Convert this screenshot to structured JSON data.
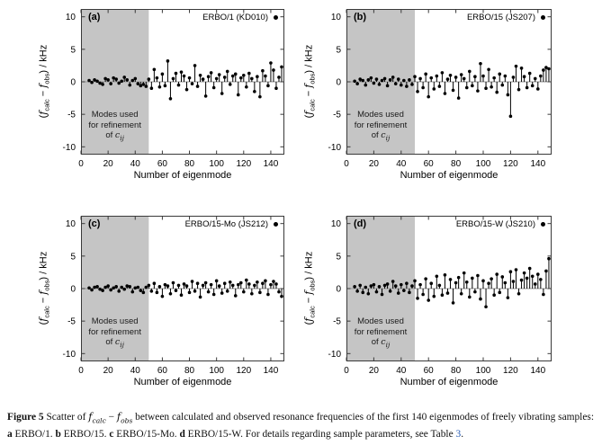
{
  "colors": {
    "shaded_region": "#c5c5c5",
    "zero_line": "#9a9a9a",
    "box_border": "#3a3a3a",
    "marker": "#000000",
    "link": "#2a5db5"
  },
  "axes": {
    "xlabel": "Number of eigenmode",
    "ylabel": {
      "open": "(",
      "f": "f",
      "sub1": "calc",
      "minus": " − ",
      "sub2": "obs",
      "close": ") / kHz"
    },
    "region": {
      "line1": "Modes used",
      "line2": "for refinement",
      "line3_prefix": "of ",
      "c": "c",
      "sub": "ij"
    }
  },
  "chart_data": {
    "type": "scatter",
    "marker": "stem-dot",
    "title": "",
    "xlabel": "Number of eigenmode",
    "ylabel": "(f_calc - f_obs) / kHz",
    "x_range": [
      0,
      150
    ],
    "y_range": [
      -11.2,
      11.2
    ],
    "x_ticks": [
      0,
      20,
      40,
      60,
      80,
      100,
      120,
      140
    ],
    "y_ticks": [
      10,
      5,
      0,
      -5,
      -10
    ],
    "grid": false,
    "legend_position": "top-right-inside",
    "shaded_region": {
      "x0": 0,
      "x1": 50,
      "label": "Modes used for refinement of cij"
    },
    "x": [
      6,
      8,
      10,
      12,
      14,
      16,
      18,
      20,
      22,
      24,
      26,
      28,
      30,
      32,
      34,
      36,
      38,
      40,
      42,
      44,
      46,
      48,
      50,
      52,
      54,
      56,
      58,
      60,
      62,
      64,
      66,
      68,
      70,
      72,
      74,
      76,
      78,
      80,
      82,
      84,
      86,
      88,
      90,
      92,
      94,
      96,
      98,
      100,
      102,
      104,
      106,
      108,
      110,
      112,
      114,
      116,
      118,
      120,
      122,
      124,
      126,
      128,
      130,
      132,
      134,
      136,
      138,
      140,
      142,
      144,
      146,
      148
    ],
    "panels": [
      {
        "panel_label": "(a)",
        "legend": "ERBO/1 (KD010)",
        "y": [
          0.2,
          -0.1,
          0.3,
          0.1,
          -0.2,
          -0.4,
          0.5,
          0.3,
          -0.3,
          0.6,
          0.4,
          -0.2,
          0.1,
          0.7,
          0.3,
          -0.5,
          0.2,
          0.5,
          -0.3,
          -0.6,
          -0.4,
          -0.7,
          0.4,
          -1.0,
          1.9,
          0.6,
          -0.8,
          1.2,
          -0.6,
          3.2,
          -2.6,
          0.5,
          1.3,
          -0.5,
          1.5,
          0.9,
          -1.2,
          0.6,
          -0.3,
          2.5,
          -0.7,
          1.0,
          0.4,
          -2.2,
          0.8,
          1.4,
          -0.9,
          0.5,
          1.1,
          -1.8,
          0.7,
          1.6,
          -0.4,
          0.9,
          1.2,
          -2.0,
          0.6,
          1.0,
          -0.8,
          1.3,
          0.5,
          -1.5,
          0.8,
          -2.3,
          1.7,
          0.9,
          -0.6,
          2.9,
          1.8,
          -1.0,
          0.7,
          2.3
        ]
      },
      {
        "panel_label": "(b)",
        "legend": "ERBO/15 (JS207)",
        "y": [
          0.1,
          -0.3,
          0.4,
          0.2,
          -0.5,
          0.3,
          0.6,
          -0.2,
          0.4,
          -0.4,
          0.2,
          0.5,
          -0.6,
          0.3,
          0.7,
          -0.3,
          0.4,
          -0.5,
          0.2,
          -0.7,
          0.3,
          -0.4,
          0.8,
          -1.5,
          0.5,
          -0.9,
          1.2,
          -2.3,
          0.6,
          -1.1,
          0.9,
          -0.7,
          1.4,
          -1.8,
          0.4,
          1.0,
          -1.3,
          0.7,
          -2.5,
          1.1,
          0.5,
          -0.9,
          1.6,
          -0.6,
          0.8,
          -1.4,
          2.8,
          0.9,
          -1.0,
          1.9,
          -0.8,
          0.6,
          -1.6,
          1.2,
          -0.5,
          0.9,
          -2.0,
          -5.3,
          0.7,
          2.4,
          -1.2,
          2.1,
          0.8,
          -0.9,
          1.3,
          -0.6,
          0.5,
          -1.1,
          0.9,
          1.8,
          2.2,
          2.0
        ]
      },
      {
        "panel_label": "(c)",
        "legend": "ERBO/15-Mo (JS212)",
        "y": [
          0.1,
          -0.2,
          0.2,
          0.3,
          -0.1,
          -0.3,
          0.2,
          0.4,
          -0.2,
          0.1,
          0.3,
          -0.4,
          0.2,
          -0.1,
          0.4,
          0.3,
          -0.5,
          0.1,
          0.2,
          -0.3,
          -0.6,
          0.2,
          0.5,
          -0.4,
          0.8,
          -0.6,
          0.3,
          -1.2,
          0.6,
          0.4,
          -0.8,
          0.9,
          -0.3,
          0.5,
          -1.0,
          0.7,
          0.4,
          -0.6,
          1.1,
          -0.4,
          0.8,
          -1.3,
          0.5,
          0.9,
          -0.5,
          0.6,
          -0.9,
          1.2,
          0.4,
          -0.7,
          0.8,
          -0.4,
          1.0,
          0.5,
          -1.1,
          0.6,
          0.9,
          -0.5,
          1.3,
          0.7,
          -0.8,
          0.5,
          1.0,
          -0.6,
          0.8,
          1.2,
          -0.9,
          0.6,
          1.1,
          0.7,
          -0.5,
          -1.2
        ]
      },
      {
        "panel_label": "(d)",
        "legend": "ERBO/15-W (JS210)",
        "y": [
          0.3,
          -0.4,
          0.5,
          -0.6,
          0.2,
          -0.8,
          0.4,
          0.6,
          -0.5,
          0.3,
          -0.9,
          0.5,
          0.7,
          -0.4,
          1.1,
          0.4,
          -0.7,
          0.6,
          -0.3,
          0.8,
          -0.6,
          0.4,
          1.2,
          -1.5,
          0.6,
          -0.9,
          1.5,
          -1.8,
          0.8,
          -1.2,
          1.9,
          0.5,
          -1.0,
          2.1,
          -0.7,
          1.4,
          -2.2,
          0.9,
          1.7,
          -0.8,
          2.4,
          1.0,
          -1.3,
          1.6,
          -0.5,
          2.0,
          -1.6,
          1.2,
          -2.8,
          0.8,
          1.5,
          -1.0,
          2.2,
          -0.6,
          1.8,
          0.9,
          -1.4,
          2.6,
          1.1,
          2.9,
          -0.8,
          1.3,
          2.4,
          1.6,
          3.1,
          1.9,
          0.7,
          2.2,
          1.4,
          -0.9,
          2.7,
          4.6
        ]
      }
    ]
  },
  "caption": {
    "figure_label": "Figure 5",
    "t1": " Scatter of ",
    "f": "f",
    "sub_calc": "calc",
    "t2": " − ",
    "sub_obs": "obs",
    "t3": " between calculated and observed resonance frequencies of the first 140 eigenmodes of freely vibrating samples: ",
    "a": "a",
    "t4": " ERBO/1. ",
    "b": "b",
    "t5": " ERBO/15. ",
    "c": "c",
    "t6": " ERBO/15-Mo. ",
    "d": "d",
    "t7": " ERBO/15-W. For details regarding sample parameters, see Table ",
    "table_link": "3",
    "t8": "."
  }
}
